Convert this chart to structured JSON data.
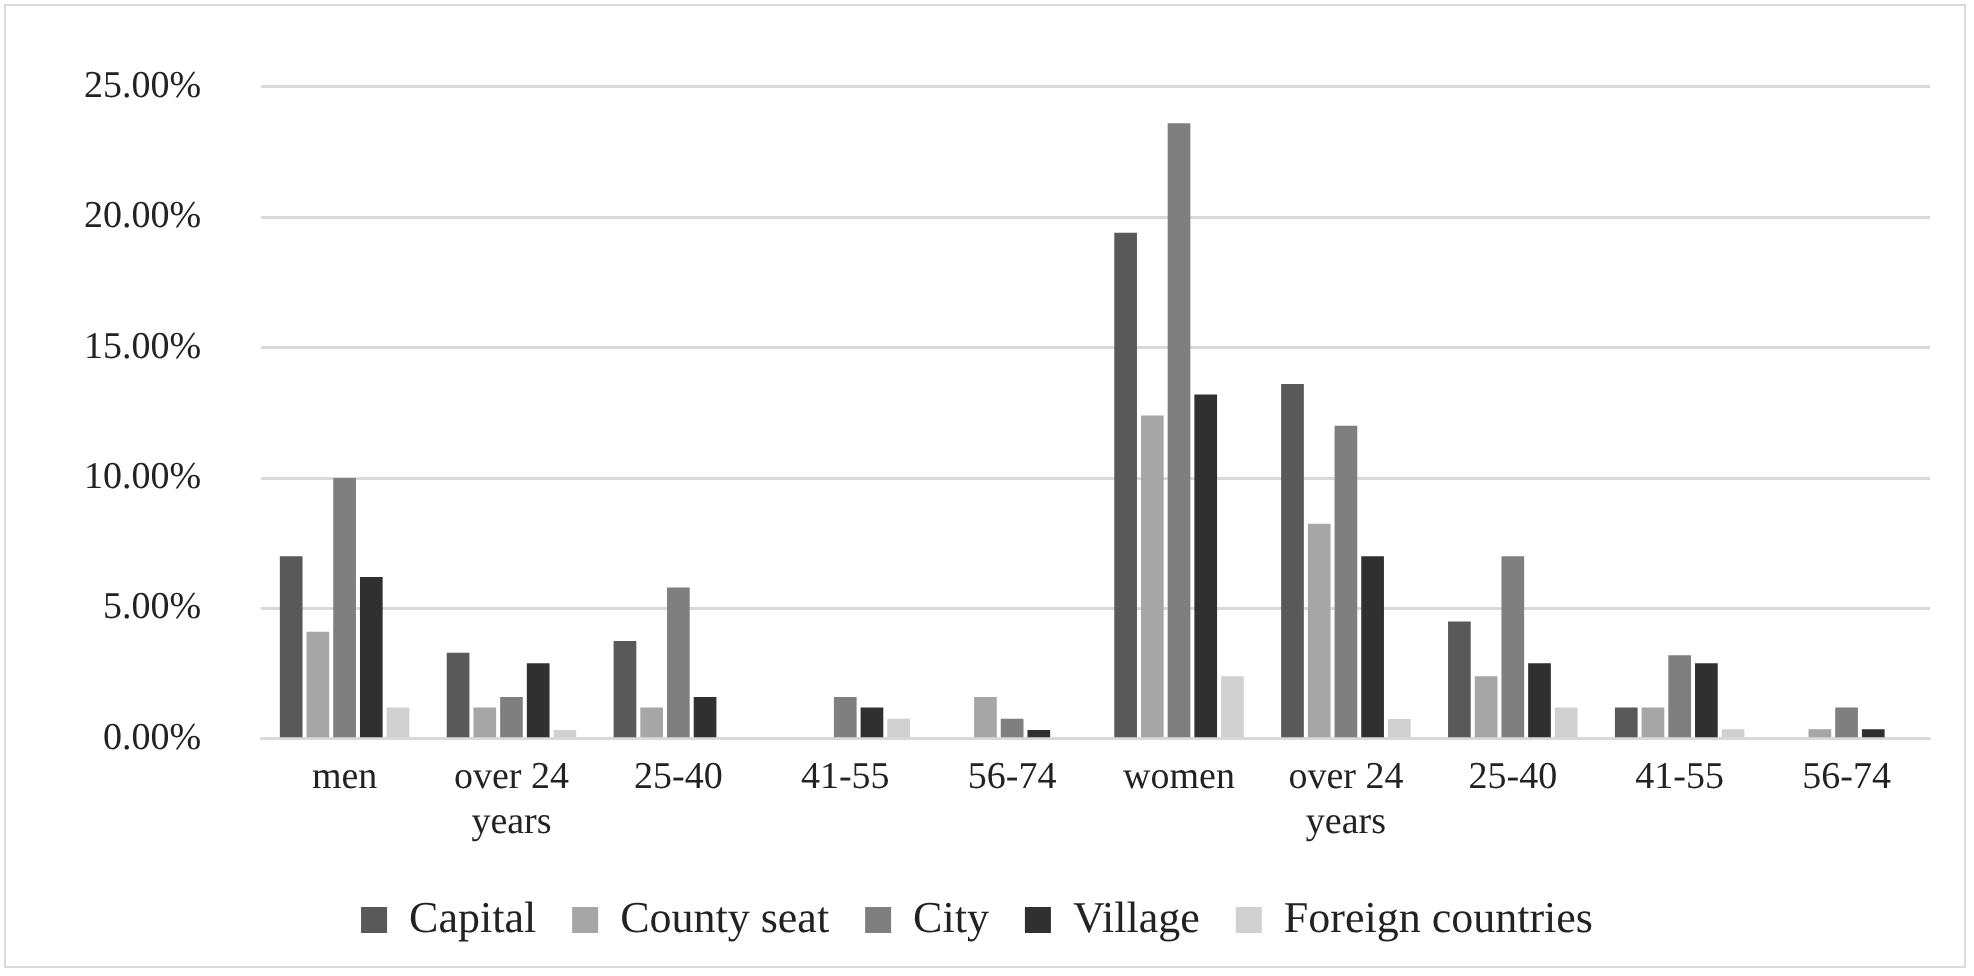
{
  "chart_data": {
    "type": "bar",
    "categories": [
      "men",
      "over 24 years",
      "25-40",
      "41-55",
      "56-74",
      "women",
      "over 24 years",
      "25-40",
      "41-55",
      "56-74"
    ],
    "series": [
      {
        "name": "Capital",
        "color": "#595959",
        "values": [
          7.0,
          3.3,
          3.75,
          0,
          0,
          19.4,
          13.6,
          4.5,
          1.2,
          0
        ]
      },
      {
        "name": "County seat",
        "color": "#a6a6a6",
        "values": [
          4.1,
          1.2,
          1.2,
          0,
          1.6,
          12.4,
          8.25,
          2.4,
          1.2,
          0.37
        ]
      },
      {
        "name": "City",
        "color": "#7f7f7f",
        "values": [
          10.0,
          1.6,
          5.8,
          1.6,
          0.77,
          23.6,
          12.0,
          7.0,
          3.2,
          1.2
        ]
      },
      {
        "name": "Village",
        "color": "#303030",
        "values": [
          6.2,
          2.9,
          1.6,
          1.2,
          0.34,
          13.2,
          7.0,
          2.9,
          2.9,
          0.37
        ]
      },
      {
        "name": "Foreign countries",
        "color": "#d0d0d0",
        "values": [
          1.2,
          0.34,
          0,
          0.77,
          0,
          2.4,
          0.76,
          1.2,
          0.37,
          0
        ]
      }
    ],
    "ylim": [
      0,
      25
    ],
    "yticks": [
      {
        "value": 0,
        "label": "0.00%"
      },
      {
        "value": 5,
        "label": "5.00%"
      },
      {
        "value": 10,
        "label": "10.00%"
      },
      {
        "value": 15,
        "label": "15.00%"
      },
      {
        "value": 20,
        "label": "20.00%"
      },
      {
        "value": 25,
        "label": "25.00%"
      }
    ],
    "grid": "y",
    "legend": "bottom"
  }
}
